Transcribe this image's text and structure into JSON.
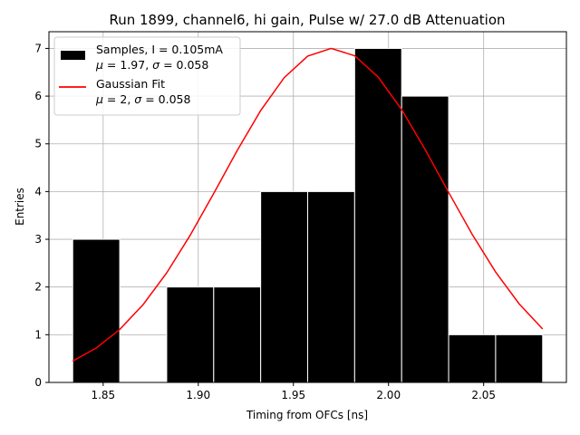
{
  "chart_data": {
    "type": "bar",
    "title": "Run 1899, channel6, hi gain, Pulse w/ 27.0 dB Attenuation",
    "xlabel": "Timing from OFCs [ns]",
    "ylabel": "Entries",
    "xlim": [
      1.8215,
      2.0935
    ],
    "ylim": [
      0,
      7.35
    ],
    "xticks": [
      1.85,
      1.9,
      1.95,
      2.0,
      2.05
    ],
    "xtick_labels": [
      "1.85",
      "1.90",
      "1.95",
      "2.00",
      "2.05"
    ],
    "yticks": [
      0,
      1,
      2,
      3,
      4,
      5,
      6,
      7
    ],
    "ytick_labels": [
      "0",
      "1",
      "2",
      "3",
      "4",
      "5",
      "6",
      "7"
    ],
    "grid": true,
    "legend_position": "top-left",
    "histogram": {
      "bin_edges": [
        1.834,
        1.8587,
        1.8834,
        1.9081,
        1.9328,
        1.9575,
        1.9822,
        2.0069,
        2.0316,
        2.0563,
        2.081
      ],
      "counts": [
        3,
        0,
        2,
        2,
        4,
        4,
        7,
        6,
        1,
        1
      ],
      "color": "#000000"
    },
    "fit": {
      "mu": 1.97,
      "sigma": 0.058,
      "amplitude": 7.0,
      "x_range": [
        1.834,
        2.081
      ],
      "color": "#ff0000"
    },
    "legend": [
      {
        "kind": "patch",
        "color": "#000000",
        "line1": "Samples, I = 0.105mA",
        "line2_mu": "1.97",
        "line2_sigma": "0.058"
      },
      {
        "kind": "line",
        "color": "#ff0000",
        "line1": "Gaussian Fit",
        "line2_mu": "2",
        "line2_sigma": "0.058"
      }
    ],
    "mu_symbol": "μ",
    "sigma_symbol": "σ",
    "equals": " = ",
    "separator": ", "
  }
}
